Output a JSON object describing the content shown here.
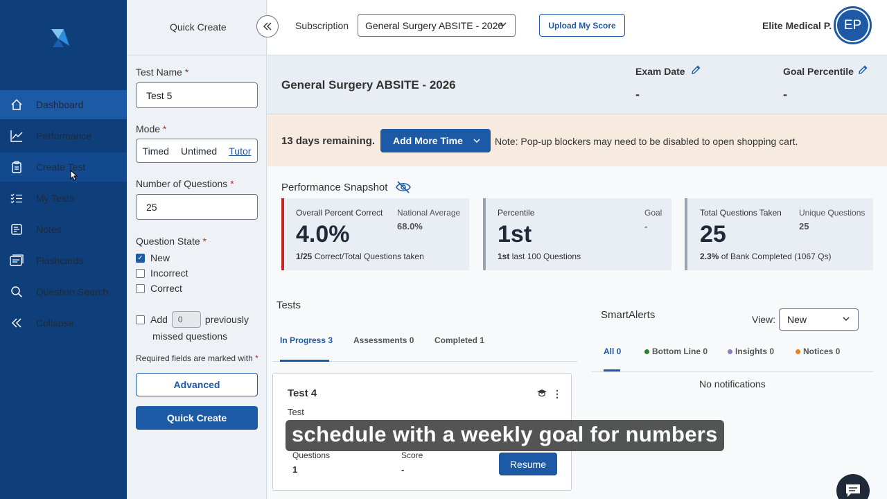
{
  "nav": {
    "items": [
      {
        "label": "Dashboard",
        "icon": "home-icon"
      },
      {
        "label": "Performance",
        "icon": "chart-line-icon"
      },
      {
        "label": "Create Test",
        "icon": "clipboard-icon"
      },
      {
        "label": "My Tests",
        "icon": "list-check-icon"
      },
      {
        "label": "Notes",
        "icon": "notes-icon"
      },
      {
        "label": "Flashcards",
        "icon": "flashcards-icon"
      },
      {
        "label": "Question Search",
        "icon": "search-icon"
      },
      {
        "label": "Collapse",
        "icon": "double-chevron-left-icon"
      }
    ]
  },
  "quick_create": {
    "title": "Quick Create",
    "test_name_label": "Test Name",
    "test_name_value": "Test 5",
    "mode_label": "Mode",
    "modes": [
      "Timed",
      "Untimed",
      "Tutor"
    ],
    "num_questions_label": "Number of Questions",
    "num_questions_value": "25",
    "question_state_label": "Question State",
    "states": [
      {
        "label": "New",
        "checked": true
      },
      {
        "label": "Incorrect",
        "checked": false
      },
      {
        "label": "Correct",
        "checked": false
      }
    ],
    "add_label": "Add",
    "add_value": "0",
    "add_suffix": "previously",
    "add_suffix2": "missed questions",
    "required_note": "Required fields are marked with",
    "advanced_label": "Advanced",
    "quick_create_label": "Quick Create"
  },
  "header": {
    "subscription_label": "Subscription",
    "subscription_value": "General Surgery ABSITE - 2026",
    "upload_label": "Upload My Score",
    "user_name": "Elite Medical P.",
    "avatar_initials": "EP"
  },
  "exam": {
    "title": "General Surgery ABSITE - 2026",
    "exam_date_label": "Exam Date",
    "exam_date_value": "-",
    "goal_label": "Goal Percentile",
    "goal_value": "-"
  },
  "time": {
    "days_remaining": "13 days remaining.",
    "add_time_label": "Add More Time",
    "note": "Note: Pop-up blockers may need to be disabled to open shopping cart."
  },
  "snapshot": {
    "title": "Performance Snapshot",
    "cards": [
      {
        "label": "Overall Percent Correct",
        "big": "4.0%",
        "side_label": "National Average",
        "side_value": "68.0%",
        "foot_bold": "1/25",
        "foot": "Correct/Total Questions taken"
      },
      {
        "label": "Percentile",
        "big": "1st",
        "side_label": "Goal",
        "side_value": "-",
        "foot_bold": "1st",
        "foot": "last 100 Questions"
      },
      {
        "label": "Total Questions Taken",
        "big": "25",
        "side_label": "Unique Questions",
        "side_value": "25",
        "foot_bold": "2.3%",
        "foot": "of Bank Completed (1067 Qs)"
      }
    ]
  },
  "tests": {
    "title": "Tests",
    "tabs": [
      "In Progress 3",
      "Assessments 0",
      "Completed 1"
    ],
    "card": {
      "title": "Test 4",
      "subtitle": "Test",
      "questions_label": "Questions",
      "questions_value": "1",
      "score_label": "Score",
      "score_value": "-",
      "resume_label": "Resume"
    }
  },
  "smart_alerts": {
    "title": "SmartAlerts",
    "view_label": "View:",
    "view_value": "New",
    "tabs": [
      {
        "label": "All 0",
        "color": ""
      },
      {
        "label": "Bottom Line 0",
        "color": "#2e7d32"
      },
      {
        "label": "Insights 0",
        "color": "#8e7cc3"
      },
      {
        "label": "Notices 0",
        "color": "#e67e22"
      }
    ],
    "empty": "No notifications"
  },
  "caption": "schedule with a weekly goal for numbers",
  "colors": {
    "primary": "#1d5aa6",
    "nav_bg": "#0f3f7a",
    "alert": "#c62828"
  }
}
